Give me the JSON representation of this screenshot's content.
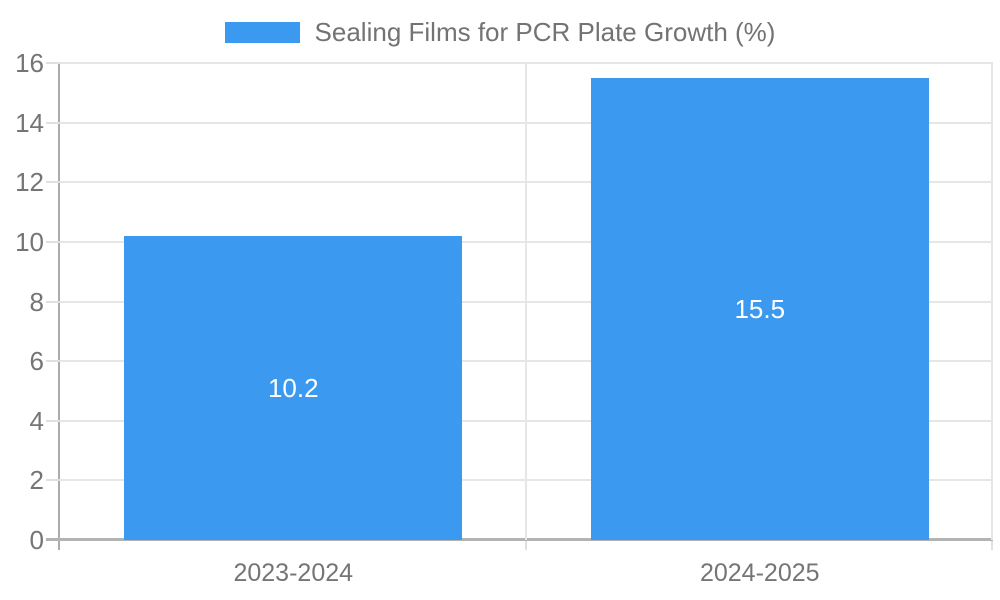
{
  "chart_data": {
    "type": "bar",
    "title": "Sealing Films for PCR Plate Growth (%)",
    "categories": [
      "2023-2024",
      "2024-2025"
    ],
    "values": [
      10.2,
      15.5
    ],
    "value_labels": [
      "10.2",
      "15.5"
    ],
    "xlabel": "",
    "ylabel": "",
    "ylim": [
      0,
      16
    ],
    "ytick_step": 2,
    "ytick_labels": [
      "0",
      "2",
      "4",
      "6",
      "8",
      "10",
      "12",
      "14",
      "16"
    ],
    "grid": true,
    "legend_position": "top-center",
    "bar_width_fraction": 0.725
  },
  "colors": {
    "bar": "#3b9af0",
    "gridline": "#e6e6e6",
    "axis_line": "#ababab",
    "baseline": "#b3b3b3",
    "tick_text": "#757575",
    "legend_text": "#737373",
    "value_text": "#ffffff",
    "background": "#ffffff"
  }
}
